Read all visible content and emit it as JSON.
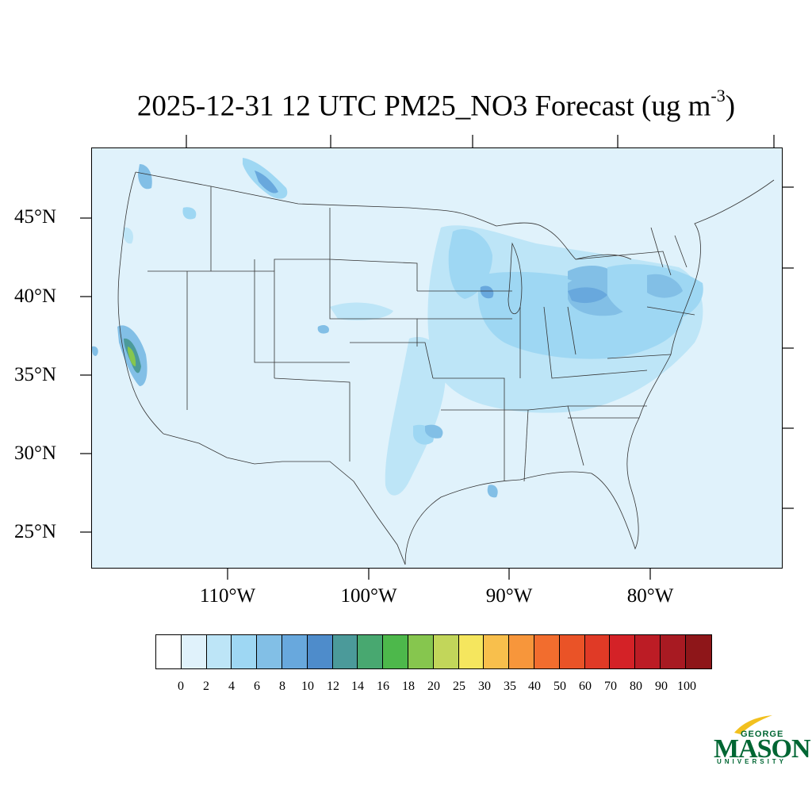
{
  "title": {
    "main": "2025-12-31 12 UTC PM25_NO3 Forecast (ug m",
    "sup": "-3",
    "close": ")"
  },
  "lat_labels": [
    "45°N",
    "40°N",
    "35°N",
    "30°N",
    "25°N"
  ],
  "lon_labels": [
    "110°W",
    "100°W",
    "90°W",
    "80°W"
  ],
  "colorbar": {
    "labels": [
      "0",
      "2",
      "4",
      "6",
      "8",
      "10",
      "12",
      "14",
      "16",
      "18",
      "20",
      "25",
      "30",
      "35",
      "40",
      "50",
      "60",
      "70",
      "80",
      "90",
      "100"
    ],
    "colors": [
      "#ffffff",
      "#e0f2fb",
      "#bde5f7",
      "#9ed7f3",
      "#82bfe6",
      "#68a8dd",
      "#4e8ccb",
      "#4b9a9a",
      "#48a870",
      "#4db84b",
      "#86c64e",
      "#c2d65a",
      "#f5e65e",
      "#f8bf4c",
      "#f7963b",
      "#f26d2e",
      "#ea5327",
      "#e03a26",
      "#d42227",
      "#bc1c25",
      "#a81a22",
      "#8e1619"
    ]
  },
  "logo": {
    "line1": "GEORGE",
    "line2": "MASON",
    "line3": "UNIVERSITY"
  },
  "colors": {
    "map_background": "#e0f2fb",
    "boundary": "#333333",
    "logo_green": "#006633",
    "logo_gold": "#f2c01e"
  }
}
